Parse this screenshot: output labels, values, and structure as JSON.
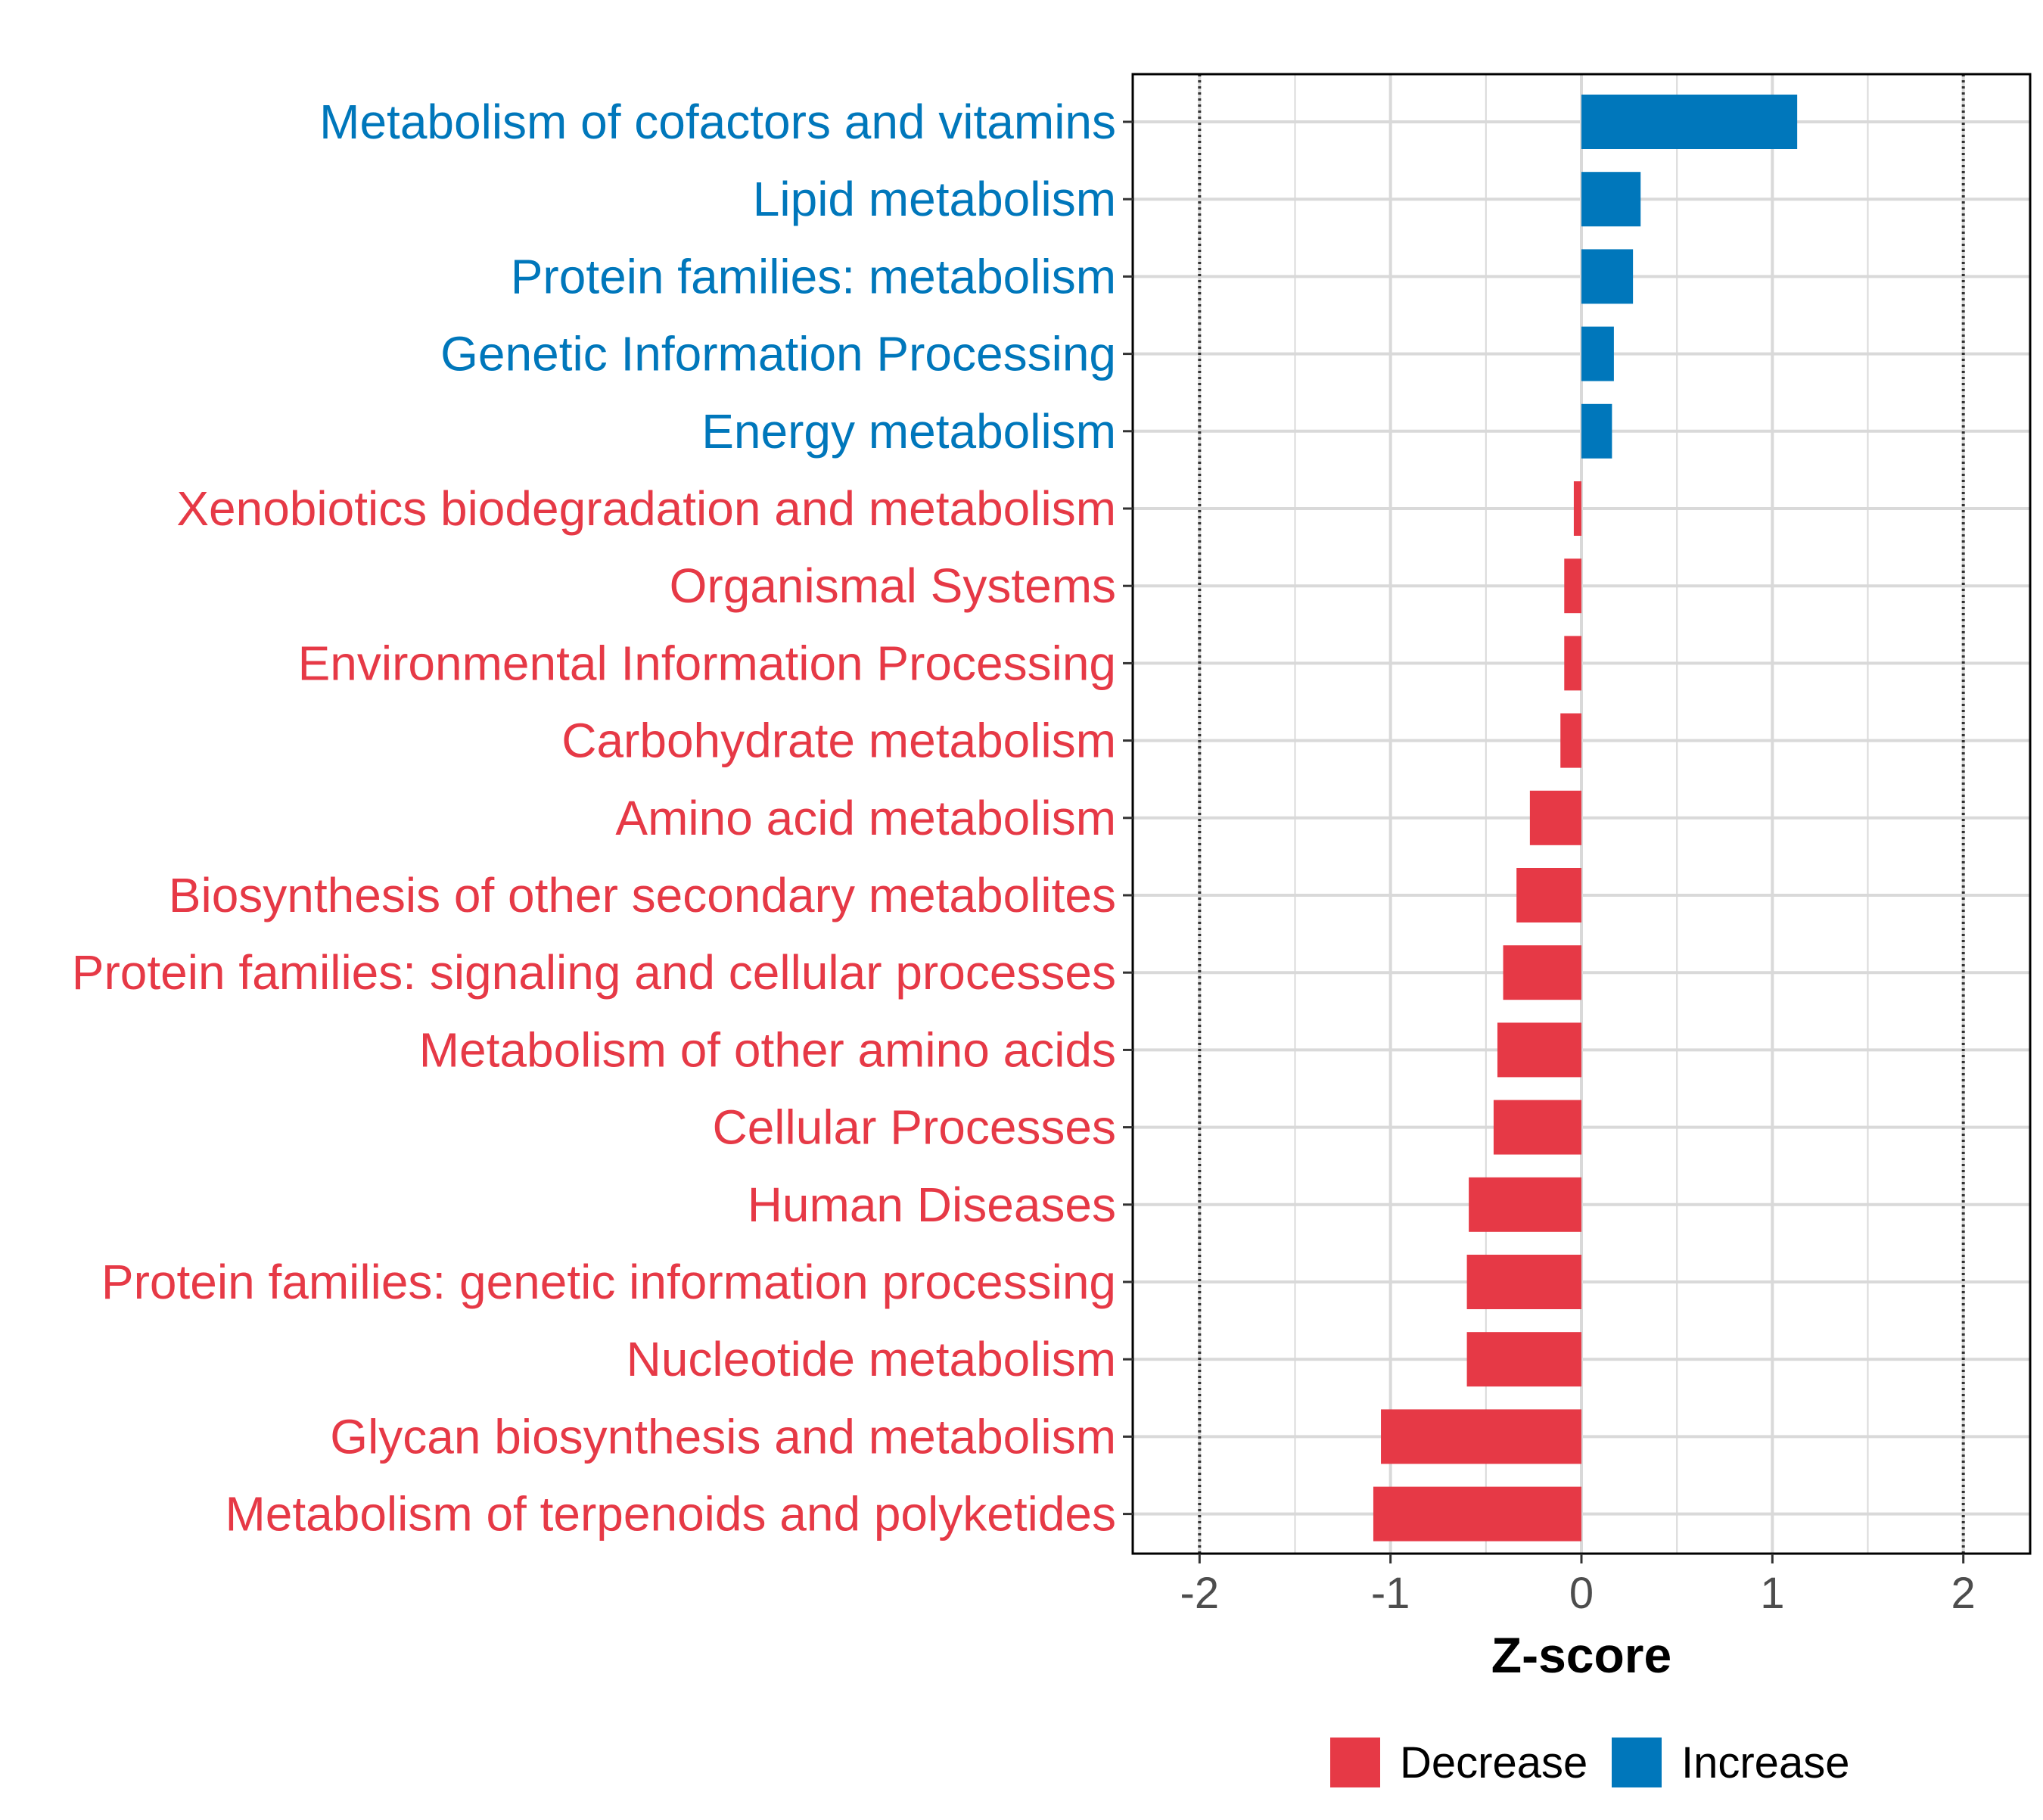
{
  "chart_data": {
    "type": "bar",
    "orientation": "horizontal",
    "title": "",
    "xlabel": "Z-score",
    "ylabel": "",
    "xlim": [
      -2.35,
      2.35
    ],
    "xticks": [
      -2,
      -1,
      0,
      1,
      2
    ],
    "xtick_labels": [
      "-2",
      "-1",
      "0",
      "1",
      "2"
    ],
    "reference_lines": [
      -2,
      2
    ],
    "grid": true,
    "colors": {
      "Decrease": "#e63946",
      "Increase": "#0077bb"
    },
    "legend": {
      "placement": "bottom",
      "entries": [
        "Decrease",
        "Increase"
      ]
    },
    "categories": [
      "Metabolism of cofactors and vitamins",
      "Lipid metabolism",
      "Protein families: metabolism",
      "Genetic Information Processing",
      "Energy metabolism",
      "Xenobiotics biodegradation and metabolism",
      "Organismal Systems",
      "Environmental Information Processing",
      "Carbohydrate metabolism",
      "Amino acid metabolism",
      "Biosynthesis of other secondary metabolites",
      "Protein families: signaling and cellular processes",
      "Metabolism of other amino acids",
      "Cellular Processes",
      "Human Diseases",
      "Protein families: genetic information processing",
      "Nucleotide metabolism",
      "Glycan biosynthesis and metabolism",
      "Metabolism of terpenoids and polyketides"
    ],
    "values": [
      1.13,
      0.31,
      0.27,
      0.17,
      0.16,
      -0.04,
      -0.09,
      -0.09,
      -0.11,
      -0.27,
      -0.34,
      -0.41,
      -0.44,
      -0.46,
      -0.59,
      -0.6,
      -0.6,
      -1.05,
      -1.09
    ],
    "groups": [
      "Increase",
      "Increase",
      "Increase",
      "Increase",
      "Increase",
      "Decrease",
      "Decrease",
      "Decrease",
      "Decrease",
      "Decrease",
      "Decrease",
      "Decrease",
      "Decrease",
      "Decrease",
      "Decrease",
      "Decrease",
      "Decrease",
      "Decrease",
      "Decrease"
    ]
  }
}
